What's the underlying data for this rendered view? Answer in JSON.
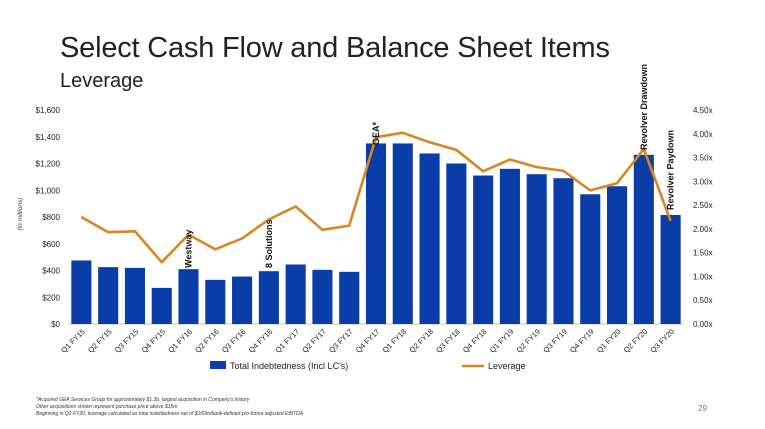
{
  "slide": {
    "title": "Select Cash Flow and Balance Sheet Items",
    "subtitle": "Leverage",
    "page_number": "29",
    "footnotes": [
      "*Acquired GEA Services Group for approximately $1.3b, largest acquisition in Company's history",
      "Other acquisitions shown represent purchase price above $15m",
      "Beginning in Q2 FY20, leverage calculated as total indebtedness net of $100m/bank-defined pro-forma adjusted EBITDA"
    ]
  },
  "colors": {
    "bars": "#0B3DA8",
    "line": "#D9861E"
  },
  "chart_data": {
    "type": "bar",
    "categories": [
      "Q1 FY15",
      "Q2 FY15",
      "Q3 FY15",
      "Q4 FY15",
      "Q1 FY16",
      "Q2 FY16",
      "Q3 FY16",
      "Q4 FY16",
      "Q1 FY17",
      "Q2 FY17",
      "Q3 FY17",
      "Q4 FY17",
      "Q1 FY18",
      "Q2 FY18",
      "Q3 FY18",
      "Q4 FY18",
      "Q1 FY19",
      "Q2 FY19",
      "Q3 FY19",
      "Q4 FY19",
      "Q1 FY20",
      "Q2 FY20",
      "Q3 FY20"
    ],
    "series": [
      {
        "name": "Total Indebtedness (Incl LC's)",
        "type": "bar",
        "axis": "left",
        "values": [
          475,
          425,
          420,
          270,
          410,
          330,
          355,
          395,
          445,
          405,
          390,
          1350,
          1350,
          1275,
          1200,
          1110,
          1160,
          1120,
          1090,
          970,
          1030,
          1265,
          815
        ]
      },
      {
        "name": "Leverage",
        "type": "line",
        "axis": "right",
        "values": [
          2.25,
          1.93,
          1.95,
          1.3,
          1.88,
          1.57,
          1.8,
          2.2,
          2.47,
          1.98,
          2.07,
          3.93,
          4.02,
          3.82,
          3.66,
          3.21,
          3.46,
          3.3,
          3.22,
          2.81,
          2.96,
          3.68,
          2.17
        ]
      }
    ],
    "ylabel": "(in millions)",
    "ylim": [
      0,
      1600
    ],
    "yticks": [
      "$0",
      "$200",
      "$400",
      "$600",
      "$800",
      "$1,000",
      "$1,200",
      "$1,400",
      "$1,600"
    ],
    "y2lim": [
      0,
      4.5
    ],
    "y2ticks": [
      "0.00x",
      "0.50x",
      "1.00x",
      "1.50x",
      "2.00x",
      "2.50x",
      "3.00x",
      "3.50x",
      "4.00x",
      "4.50x"
    ],
    "legend_position": "bottom",
    "annotations": [
      {
        "text": "Westway",
        "category_index": 4
      },
      {
        "text": "8 Solutions",
        "category_index": 7
      },
      {
        "text": "GEA*",
        "category_index": 11
      },
      {
        "text": "Revolver Drawdown",
        "category_index": 21
      },
      {
        "text": "Revolver Paydown",
        "category_index": 22
      }
    ]
  }
}
